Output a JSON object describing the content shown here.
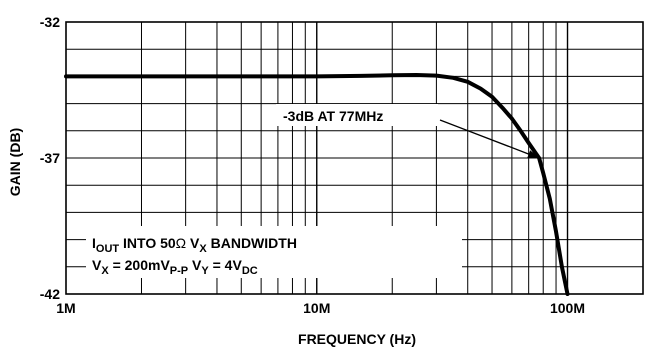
{
  "chart_data": {
    "type": "line",
    "xlabel": "FREQUENCY (Hz)",
    "ylabel": "GAIN (DB)",
    "x_scale": "log",
    "xlim": [
      1000000,
      200000000
    ],
    "ylim": [
      -42,
      -32
    ],
    "grid": true,
    "x_ticks": [
      {
        "value": 1000000,
        "label": "1M"
      },
      {
        "value": 10000000,
        "label": "10M"
      },
      {
        "value": 100000000,
        "label": "100M"
      }
    ],
    "y_ticks": [
      {
        "value": -32,
        "label": "-32"
      },
      {
        "value": -37,
        "label": "-37"
      },
      {
        "value": -42,
        "label": "-42"
      }
    ],
    "series": [
      {
        "color": "#000000",
        "x": [
          1000000,
          2000000,
          5000000,
          10000000,
          15000000,
          20000000,
          25000000,
          30000000,
          35000000,
          40000000,
          45000000,
          50000000,
          55000000,
          60000000,
          65000000,
          70000000,
          75000000,
          77000000,
          80000000,
          85000000,
          90000000,
          95000000,
          100000000
        ],
        "y": [
          -34.0,
          -34.0,
          -34.0,
          -34.0,
          -33.98,
          -33.96,
          -33.95,
          -33.97,
          -34.05,
          -34.2,
          -34.45,
          -34.75,
          -35.15,
          -35.55,
          -36.0,
          -36.45,
          -36.85,
          -37.0,
          -37.55,
          -38.5,
          -39.7,
          -41.0,
          -42.0
        ]
      }
    ],
    "annotations": [
      {
        "id": "3db",
        "text": "-3dB AT 77MHz",
        "target": {
          "x": 77000000,
          "y": -37.0
        }
      }
    ],
    "note": {
      "line1": {
        "i": "I",
        "i_sub": "OUT",
        "into": " INTO 50",
        "omega": "Ω",
        "vx": " V",
        "vx_sub": "X",
        "bw": " BANDWIDTH"
      },
      "line2": {
        "v": "V",
        "v_sub": "X",
        "eq": " = 200mV",
        "pp_sub": "P-P",
        "vy": " V",
        "vy_sub": "Y",
        "eq2": " = 4V",
        "dc_sub": "DC"
      }
    }
  }
}
